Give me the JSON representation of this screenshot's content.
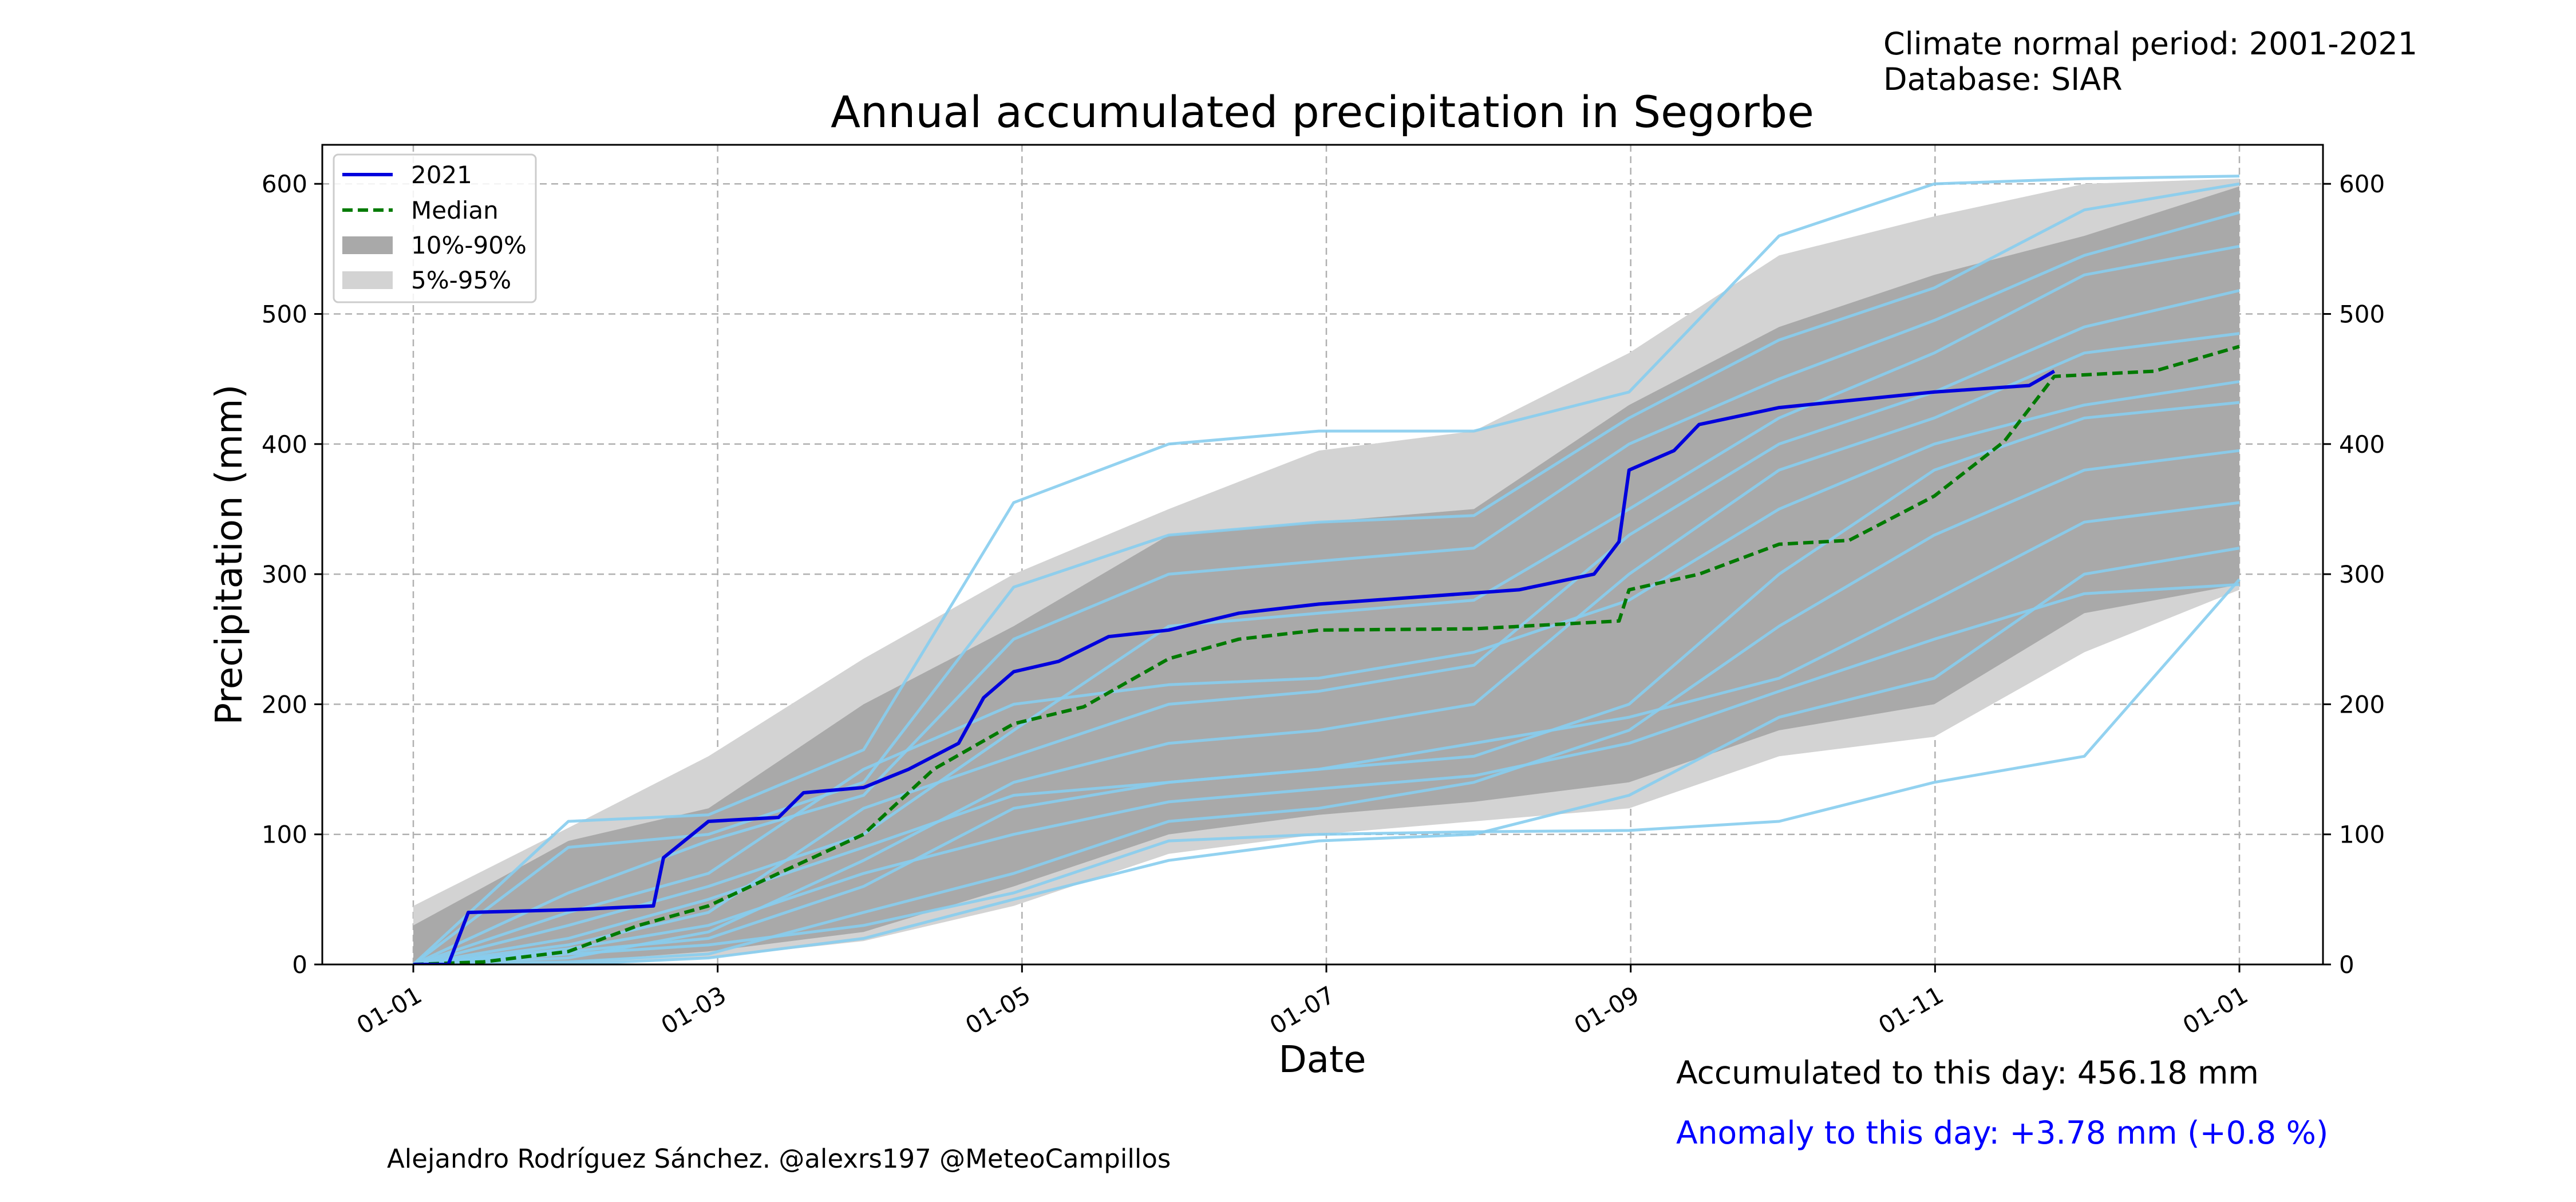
{
  "header": {
    "period_line": "Climate normal period: 2001-2021",
    "database_line": "Database: SIAR"
  },
  "footer": {
    "author": "Alejandro Rodríguez Sánchez. @alexrs197 @MeteoCampillos",
    "accumulated": "Accumulated to this day: 456.18 mm",
    "anomaly": "Anomaly to this day: +3.78 mm (+0.8 %)"
  },
  "colors": {
    "current_year": "#0000dd",
    "median": "#007a00",
    "band_10_90": "#a9a9a9",
    "band_5_95": "#d3d3d3",
    "historical_years": "#87cdee",
    "anomaly_text": "#0000ff",
    "grid": "#b0b0b0"
  },
  "chart_data": {
    "type": "line",
    "title": "Annual accumulated precipitation in Segorbe",
    "xlabel": "Date",
    "ylabel": "Precipitation (mm)",
    "x_ticks": [
      "01-01",
      "01-03",
      "01-05",
      "01-07",
      "01-09",
      "01-11",
      "01-01"
    ],
    "y_ticks": [
      0,
      100,
      200,
      300,
      400,
      500,
      600
    ],
    "ylim": [
      0,
      630
    ],
    "grid": true,
    "secondary_y_axis": true,
    "legend_position": "top-left",
    "legend": [
      "2021",
      "Median",
      "10%-90%",
      "5%-95%"
    ],
    "series": [
      {
        "name": "2021",
        "x": [
          "01-01",
          "01-08",
          "01-10",
          "01-12",
          "02-01",
          "02-18",
          "02-20",
          "03-01",
          "03-15",
          "03-20",
          "04-01",
          "04-10",
          "04-20",
          "04-25",
          "05-01",
          "05-10",
          "05-20",
          "06-01",
          "06-15",
          "07-01",
          "08-10",
          "08-25",
          "08-30",
          "09-01",
          "09-10",
          "09-15",
          "10-01",
          "11-01",
          "11-20",
          "11-25"
        ],
        "values": [
          0,
          0,
          20,
          40,
          42,
          45,
          82,
          110,
          113,
          132,
          136,
          150,
          170,
          205,
          225,
          233,
          252,
          257,
          270,
          277,
          288,
          300,
          325,
          380,
          395,
          415,
          428,
          440,
          445,
          456
        ]
      },
      {
        "name": "Median",
        "x": [
          "01-01",
          "01-15",
          "02-01",
          "02-15",
          "03-01",
          "03-15",
          "04-01",
          "04-15",
          "05-01",
          "05-15",
          "06-01",
          "06-15",
          "07-01",
          "08-01",
          "08-30",
          "09-01",
          "09-15",
          "10-01",
          "10-15",
          "11-01",
          "11-15",
          "11-25",
          "12-15",
          "12-31"
        ],
        "values": [
          0,
          2,
          10,
          30,
          45,
          70,
          100,
          150,
          185,
          198,
          235,
          250,
          257,
          258,
          264,
          288,
          300,
          323,
          326,
          360,
          402,
          452,
          456,
          475
        ]
      },
      {
        "name": "10%-90%",
        "x": [
          "01-01",
          "02-01",
          "03-01",
          "04-01",
          "05-01",
          "06-01",
          "07-01",
          "08-01",
          "09-01",
          "10-01",
          "11-01",
          "12-01",
          "12-31"
        ],
        "lower": [
          0,
          2,
          10,
          25,
          60,
          100,
          115,
          125,
          140,
          180,
          200,
          270,
          292
        ],
        "upper": [
          30,
          95,
          120,
          200,
          260,
          330,
          340,
          350,
          430,
          490,
          530,
          560,
          598
        ]
      },
      {
        "name": "5%-95%",
        "x": [
          "01-01",
          "02-01",
          "03-01",
          "04-01",
          "05-01",
          "06-01",
          "07-01",
          "08-01",
          "09-01",
          "10-01",
          "11-01",
          "12-01",
          "12-31"
        ],
        "lower": [
          0,
          0,
          5,
          18,
          45,
          85,
          100,
          110,
          120,
          160,
          175,
          240,
          288
        ],
        "upper": [
          45,
          105,
          160,
          235,
          300,
          350,
          395,
          410,
          470,
          545,
          575,
          600,
          604
        ]
      },
      {
        "name": "historical years",
        "x": [
          "01-01",
          "02-01",
          "03-01",
          "04-01",
          "05-01",
          "06-01",
          "07-01",
          "08-01",
          "09-01",
          "10-01",
          "11-01",
          "12-01",
          "12-31"
        ],
        "lines": [
          [
            0,
            110,
            115,
            165,
            355,
            400,
            410,
            410,
            440,
            560,
            600,
            604,
            606
          ],
          [
            0,
            90,
            100,
            140,
            290,
            330,
            340,
            345,
            420,
            480,
            520,
            580,
            600
          ],
          [
            0,
            55,
            95,
            130,
            250,
            300,
            310,
            320,
            400,
            450,
            495,
            545,
            578
          ],
          [
            0,
            30,
            60,
            100,
            180,
            260,
            270,
            280,
            350,
            420,
            470,
            530,
            552
          ],
          [
            0,
            15,
            40,
            120,
            160,
            200,
            210,
            230,
            330,
            400,
            440,
            490,
            518
          ],
          [
            0,
            5,
            25,
            80,
            140,
            170,
            180,
            200,
            300,
            380,
            420,
            470,
            485
          ],
          [
            0,
            40,
            70,
            150,
            200,
            215,
            220,
            240,
            280,
            350,
            400,
            430,
            448
          ],
          [
            0,
            10,
            20,
            60,
            120,
            140,
            150,
            160,
            200,
            300,
            380,
            420,
            432
          ],
          [
            0,
            2,
            8,
            40,
            70,
            110,
            120,
            140,
            180,
            260,
            330,
            380,
            395
          ],
          [
            0,
            20,
            50,
            90,
            130,
            140,
            150,
            170,
            190,
            220,
            280,
            340,
            355
          ],
          [
            0,
            0,
            5,
            20,
            50,
            80,
            95,
            100,
            130,
            190,
            220,
            300,
            320
          ],
          [
            0,
            8,
            15,
            30,
            55,
            95,
            100,
            102,
            103,
            110,
            140,
            160,
            296
          ],
          [
            0,
            12,
            30,
            70,
            100,
            125,
            135,
            145,
            170,
            210,
            250,
            285,
            292
          ]
        ]
      }
    ]
  }
}
